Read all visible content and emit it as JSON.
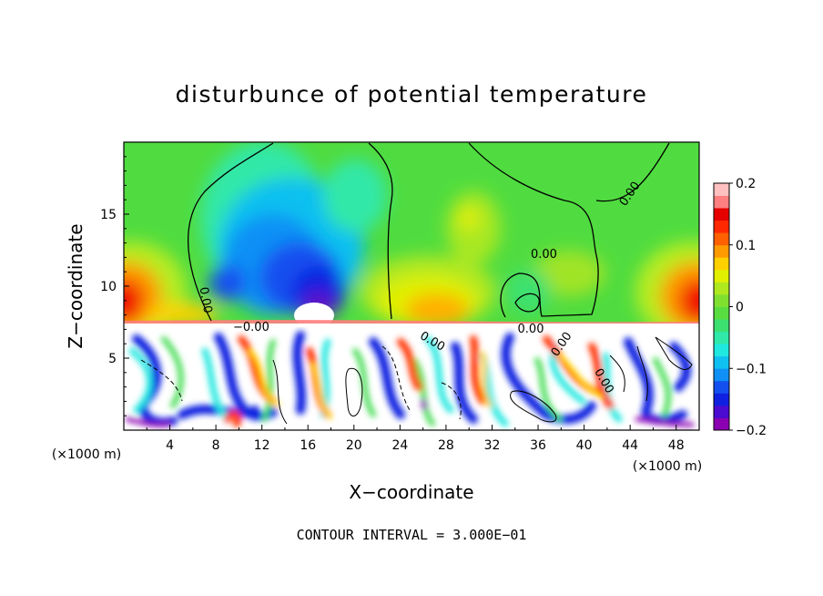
{
  "chart_data": {
    "type": "heatmap",
    "title": "disturbunce of potential temperature",
    "xlabel": "X−coordinate",
    "ylabel": "Z−coordinate",
    "x_unit_label": "(×1000 m)",
    "x_unit_label_right": "(×1000 m)",
    "footer": "CONTOUR INTERVAL = 3.000E−01",
    "xlim": [
      0,
      50
    ],
    "ylim": [
      0,
      20
    ],
    "x_ticks": [
      "4",
      "8",
      "12",
      "16",
      "20",
      "24",
      "28",
      "32",
      "36",
      "40",
      "44",
      "48"
    ],
    "y_ticks": [
      "5",
      "10",
      "15"
    ],
    "colorbar": {
      "range": [
        -0.2,
        0.2
      ],
      "tick_labels": [
        "0.2",
        "0.1",
        "0",
        "−0.1",
        "−0.2"
      ],
      "colors": [
        "#8b00b0",
        "#4b0bd0",
        "#1020e0",
        "#1450f0",
        "#1090f5",
        "#10c0f0",
        "#20e8e0",
        "#30e8a8",
        "#3ce070",
        "#58dc40",
        "#80e030",
        "#b0e820",
        "#e0f000",
        "#ffd000",
        "#ff9a00",
        "#ff6000",
        "#ff2800",
        "#e60000",
        "#ff8080",
        "#ffc0c0"
      ]
    },
    "contour_labels": [
      "−0.00",
      "0.00",
      "0.00",
      "0.00",
      "0.00",
      "0.00",
      "0.00",
      "0.00"
    ]
  }
}
